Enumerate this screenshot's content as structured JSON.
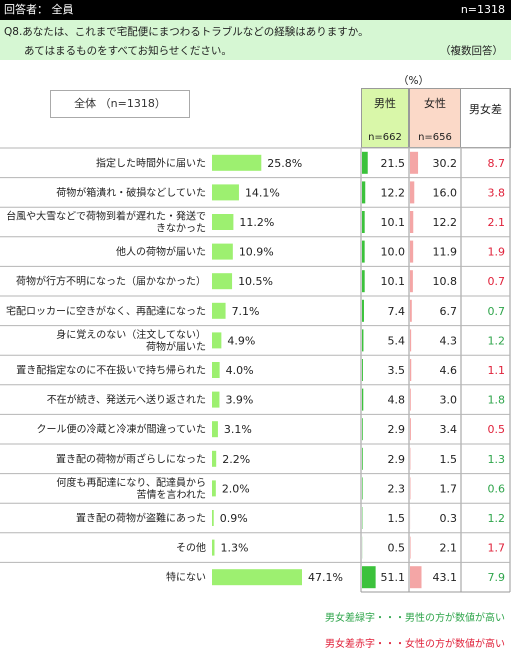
{
  "header": {
    "respondent": "回答者： 全員",
    "n": "n=1318"
  },
  "question": {
    "line1": "Q8.あなたは、これまで宅配便にまつわるトラブルなどの経験はありますか。",
    "line2": "あてはまるものをすべてお知らせください。",
    "multiple": "（複数回答）"
  },
  "unit": "（%）",
  "total_label": "全体 （n=1318）",
  "columns": {
    "male": {
      "label": "男性",
      "n": "n=662"
    },
    "female": {
      "label": "女性",
      "n": "n=656"
    },
    "diff": {
      "label": "男女差"
    }
  },
  "colors": {
    "bar": "#9df070",
    "male_bar": "#3cc23c",
    "female_bar": "#f4a6a6",
    "green": "#2fa54b",
    "red": "#e0213a"
  },
  "chart_data": {
    "type": "bar",
    "categories": [
      [
        "指定した時間外に届いた"
      ],
      [
        "荷物が箱潰れ・破損などしていた"
      ],
      [
        "台風や大雪などで荷物到着が遅れた・発送で",
        "きなかった"
      ],
      [
        "他人の荷物が届いた"
      ],
      [
        "荷物が行方不明になった（届かなかった）"
      ],
      [
        "宅配ロッカーに空きがなく、再配達になった"
      ],
      [
        "身に覚えのない（注文してない）",
        "荷物が届いた"
      ],
      [
        "置き配指定なのに不在扱いで持ち帰られた"
      ],
      [
        "不在が続き、発送元へ送り返された"
      ],
      [
        "クール便の冷蔵と冷凍が間違っていた"
      ],
      [
        "置き配の荷物が雨ざらしになった"
      ],
      [
        "何度も再配達になり、配達員から",
        "苦情を言われた"
      ],
      [
        "置き配の荷物が盗難にあった"
      ],
      [
        "その他"
      ],
      [
        "特にない"
      ]
    ],
    "total": [
      "25.8%",
      "14.1%",
      "11.2%",
      "10.9%",
      "10.5%",
      "7.1%",
      "4.9%",
      "4.0%",
      "3.9%",
      "3.1%",
      "2.2%",
      "2.0%",
      "0.9%",
      "1.3%",
      "47.1%"
    ],
    "total_values": [
      25.8,
      14.1,
      11.2,
      10.9,
      10.5,
      7.1,
      4.9,
      4.0,
      3.9,
      3.1,
      2.2,
      2.0,
      0.9,
      1.3,
      47.1
    ],
    "male": [
      "21.5",
      "12.2",
      "10.1",
      "10.0",
      "10.1",
      "7.4",
      "5.4",
      "3.5",
      "4.8",
      "2.9",
      "2.9",
      "2.3",
      "1.5",
      "0.5",
      "51.1"
    ],
    "male_values": [
      21.5,
      12.2,
      10.1,
      10.0,
      10.1,
      7.4,
      5.4,
      3.5,
      4.8,
      2.9,
      2.9,
      2.3,
      1.5,
      0.5,
      51.1
    ],
    "female": [
      "30.2",
      "16.0",
      "12.2",
      "11.9",
      "10.8",
      "6.7",
      "4.3",
      "4.6",
      "3.0",
      "3.4",
      "1.5",
      "1.7",
      "0.3",
      "2.1",
      "43.1"
    ],
    "female_values": [
      30.2,
      16.0,
      12.2,
      11.9,
      10.8,
      6.7,
      4.3,
      4.6,
      3.0,
      3.4,
      1.5,
      1.7,
      0.3,
      2.1,
      43.1
    ],
    "diff": [
      "8.7",
      "3.8",
      "2.1",
      "1.9",
      "0.7",
      "0.7",
      "1.2",
      "1.1",
      "1.8",
      "0.5",
      "1.3",
      "0.6",
      "1.2",
      "1.7",
      "7.9"
    ],
    "diff_color": [
      "red",
      "red",
      "red",
      "red",
      "red",
      "green",
      "green",
      "red",
      "green",
      "red",
      "green",
      "green",
      "green",
      "red",
      "green"
    ]
  },
  "legend": {
    "green": "男女差緑字・・・男性の方が数値が高い",
    "red": "男女差赤字・・・女性の方が数値が高い"
  }
}
